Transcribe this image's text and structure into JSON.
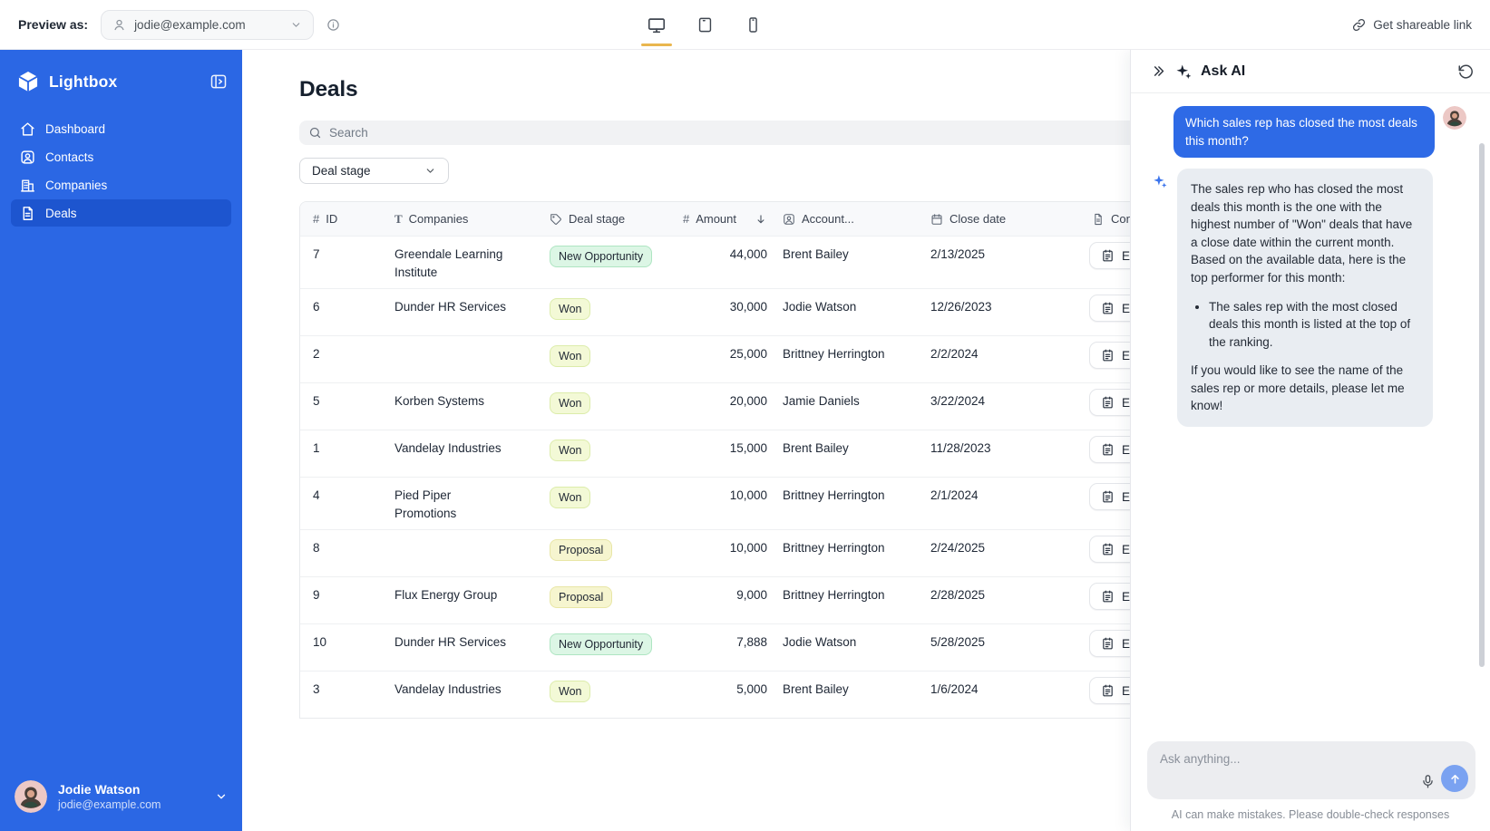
{
  "topbar": {
    "preview_label": "Preview as:",
    "preview_value": "jodie@example.com",
    "share_link_label": "Get shareable link",
    "devices": [
      {
        "name": "desktop",
        "icon": "monitor-icon",
        "active": true
      },
      {
        "name": "tablet",
        "icon": "tablet-icon",
        "active": false
      },
      {
        "name": "mobile",
        "icon": "phone-icon",
        "active": false
      }
    ]
  },
  "sidebar": {
    "brand": "Lightbox",
    "items": [
      {
        "label": "Dashboard",
        "icon": "home-icon",
        "active": false
      },
      {
        "label": "Contacts",
        "icon": "contact-card-icon",
        "active": false
      },
      {
        "label": "Companies",
        "icon": "building-icon",
        "active": false
      },
      {
        "label": "Deals",
        "icon": "document-icon",
        "active": true
      }
    ],
    "user": {
      "name": "Jodie Watson",
      "email": "jodie@example.com"
    }
  },
  "main": {
    "title": "Deals",
    "search_placeholder": "Search",
    "filter_label": "Deal stage",
    "table": {
      "columns": [
        {
          "icon": "hash-icon",
          "label": "ID"
        },
        {
          "icon": "text-icon",
          "label": "Companies"
        },
        {
          "icon": "tag-icon",
          "label": "Deal stage"
        },
        {
          "icon": "hash-icon",
          "label": "Amount",
          "sorted": "desc"
        },
        {
          "icon": "user-square-icon",
          "label": "Account..."
        },
        {
          "icon": "calendar-icon",
          "label": "Close date"
        },
        {
          "icon": "file-icon",
          "label": "Con"
        }
      ],
      "rows": [
        {
          "id": "7",
          "company": "Greendale Learning Institute",
          "stage": "New Opportunity",
          "amount": "44,000",
          "account": "Brent Bailey",
          "close_date": "2/13/2025",
          "action": "E"
        },
        {
          "id": "6",
          "company": "Dunder HR Services",
          "stage": "Won",
          "amount": "30,000",
          "account": "Jodie Watson",
          "close_date": "12/26/2023",
          "action": "E"
        },
        {
          "id": "2",
          "company": "",
          "stage": "Won",
          "amount": "25,000",
          "account": "Brittney Herrington",
          "close_date": "2/2/2024",
          "action": "E"
        },
        {
          "id": "5",
          "company": "Korben Systems",
          "stage": "Won",
          "amount": "20,000",
          "account": "Jamie Daniels",
          "close_date": "3/22/2024",
          "action": "E"
        },
        {
          "id": "1",
          "company": "Vandelay Industries",
          "stage": "Won",
          "amount": "15,000",
          "account": "Brent Bailey",
          "close_date": "11/28/2023",
          "action": "E"
        },
        {
          "id": "4",
          "company": "Pied Piper Promotions",
          "stage": "Won",
          "amount": "10,000",
          "account": "Brittney Herrington",
          "close_date": "2/1/2024",
          "action": "E"
        },
        {
          "id": "8",
          "company": "",
          "stage": "Proposal",
          "amount": "10,000",
          "account": "Brittney Herrington",
          "close_date": "2/24/2025",
          "action": "E"
        },
        {
          "id": "9",
          "company": "Flux Energy Group",
          "stage": "Proposal",
          "amount": "9,000",
          "account": "Brittney Herrington",
          "close_date": "2/28/2025",
          "action": "E"
        },
        {
          "id": "10",
          "company": "Dunder HR Services",
          "stage": "New Opportunity",
          "amount": "7,888",
          "account": "Jodie Watson",
          "close_date": "5/28/2025",
          "action": "E"
        },
        {
          "id": "3",
          "company": "Vandelay Industries",
          "stage": "Won",
          "amount": "5,000",
          "account": "Brent Bailey",
          "close_date": "1/6/2024",
          "action": "E"
        }
      ]
    }
  },
  "ai_panel": {
    "title": "Ask AI",
    "user_message": "Which sales rep has closed the most deals this month?",
    "response": {
      "intro": "The sales rep who has closed the most deals this month is the one with the highest number of \"Won\" deals that have a close date within the current month. Based on the available data, here is the top performer for this month:",
      "bullets": [
        "The sales rep with the most closed deals this month is listed at the top of the ranking."
      ],
      "outro": "If you would like to see the name of the sales rep or more details, please let me know!"
    },
    "input_placeholder": "Ask anything...",
    "disclaimer": "AI can make mistakes. Please double-check responses"
  },
  "colors": {
    "sidebar_blue": "#2b67e4",
    "sidebar_active_blue": "#1d55cf",
    "user_bubble_blue": "#2e6ae6",
    "send_button_blue": "#7aa2f1",
    "active_device_underline": "#e9b64e",
    "stage_new_opportunity_bg": "#dcf6e5",
    "stage_won_bg": "#f3f9d6",
    "stage_proposal_bg": "#f6f5cf"
  }
}
